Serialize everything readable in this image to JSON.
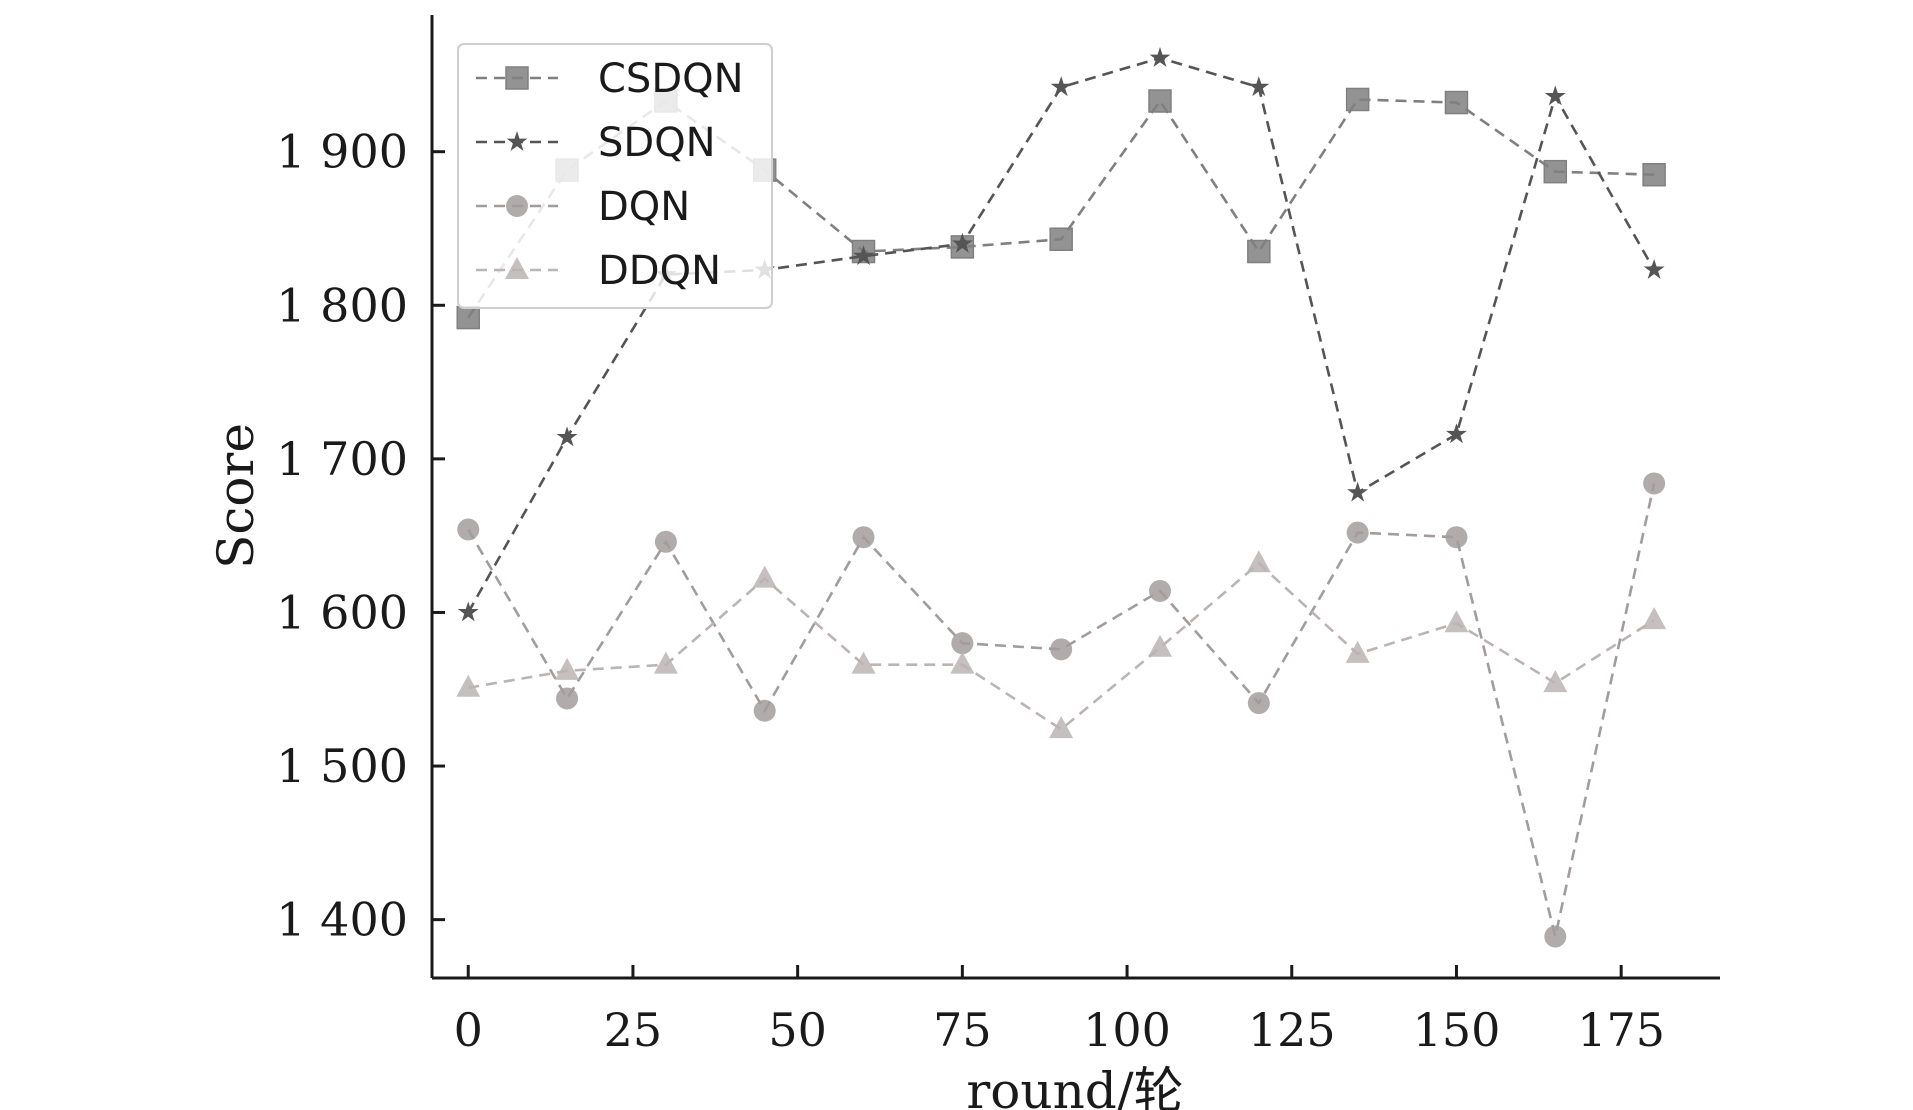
{
  "chart_data": {
    "type": "line",
    "title": "",
    "xlabel": "round/轮",
    "ylabel": "Score",
    "x": [
      0,
      15,
      30,
      45,
      60,
      75,
      90,
      105,
      120,
      135,
      150,
      165,
      180
    ],
    "xlim": [
      -5.5,
      190
    ],
    "ylim": [
      1362,
      1989
    ],
    "xticks": [
      0,
      25,
      50,
      75,
      100,
      125,
      150,
      175
    ],
    "xtick_labels": [
      "0",
      "25",
      "50",
      "75",
      "100",
      "125",
      "150",
      "175"
    ],
    "yticks": [
      1400,
      1500,
      1600,
      1700,
      1800,
      1900
    ],
    "ytick_labels": [
      "1 400",
      "1 500",
      "1 600",
      "1 700",
      "1 800",
      "1 900"
    ],
    "grid": false,
    "legend_position": "top-left",
    "series": [
      {
        "name": "CSDQN",
        "marker": "square",
        "color": "#808080",
        "values": [
          1792,
          1888,
          1933,
          1888,
          1835,
          1838,
          1843,
          1933,
          1835,
          1934,
          1932,
          1887,
          1885
        ]
      },
      {
        "name": "SDQN",
        "marker": "star",
        "color": "#555555",
        "values": [
          1600,
          1714,
          1820,
          1823,
          1832,
          1840,
          1942,
          1961,
          1942,
          1678,
          1716,
          1936,
          1823
        ]
      },
      {
        "name": "DQN",
        "marker": "circle",
        "color": "#a39c9c",
        "values": [
          1654,
          1544,
          1646,
          1536,
          1649,
          1580,
          1576,
          1614,
          1541,
          1652,
          1649,
          1389,
          1684
        ]
      },
      {
        "name": "DDQN",
        "marker": "triangle",
        "color": "#bcb4b4",
        "values": [
          1551,
          1562,
          1566,
          1622,
          1566,
          1566,
          1524,
          1577,
          1632,
          1573,
          1593,
          1554,
          1595
        ]
      }
    ]
  }
}
